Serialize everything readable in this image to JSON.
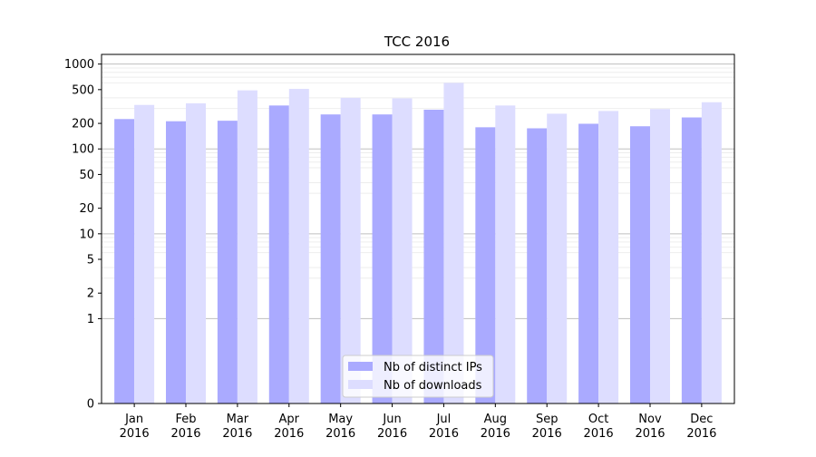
{
  "chart_data": {
    "type": "bar",
    "title": "TCC 2016",
    "xlabel": "",
    "ylabel": "",
    "yscale": "symlog",
    "ylim": [
      0,
      1300
    ],
    "yticks": [
      0,
      1,
      2,
      5,
      10,
      20,
      50,
      100,
      200,
      500,
      1000
    ],
    "grid": true,
    "categories": [
      "Jan\n2016",
      "Feb\n2016",
      "Mar\n2016",
      "Apr\n2016",
      "May\n2016",
      "Jun\n2016",
      "Jul\n2016",
      "Aug\n2016",
      "Sep\n2016",
      "Oct\n2016",
      "Nov\n2016",
      "Dec\n2016"
    ],
    "series": [
      {
        "name": "Nb of distinct IPs",
        "color": "#aaaaff",
        "values": [
          225,
          212,
          215,
          325,
          255,
          255,
          290,
          180,
          175,
          198,
          185,
          235
        ]
      },
      {
        "name": "Nb of downloads",
        "color": "#ddddff",
        "values": [
          330,
          345,
          490,
          510,
          400,
          395,
          600,
          325,
          260,
          280,
          295,
          355
        ]
      }
    ],
    "legend": {
      "position": "bottom-center"
    }
  }
}
